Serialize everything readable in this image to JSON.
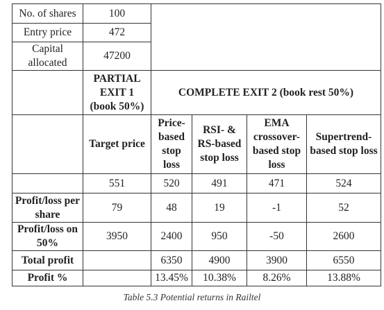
{
  "setup": [
    {
      "label": "No. of shares",
      "value": "100"
    },
    {
      "label": "Entry price",
      "value": "472"
    },
    {
      "label": "Capital allocated",
      "value": "47200"
    }
  ],
  "exit_headers": {
    "partial": "PARTIAL EXIT 1 (book 50%)",
    "complete": "COMPLETE EXIT 2 (book rest 50%)"
  },
  "column_headers": [
    "Target price",
    "Price-based stop loss",
    "RSI- & RS-based stop loss",
    "EMA crossover-based stop loss",
    "Supertrend-based stop loss"
  ],
  "prices": [
    "551",
    "520",
    "491",
    "471",
    "524"
  ],
  "metrics": [
    {
      "label": "Profit/loss per share",
      "values": [
        "79",
        "48",
        "19",
        "-1",
        "52"
      ]
    },
    {
      "label": "Profit/loss on 50%",
      "values": [
        "3950",
        "2400",
        "950",
        "-50",
        "2600"
      ]
    },
    {
      "label": "Total profit",
      "values": [
        "6350",
        "4900",
        "3900",
        "6550"
      ]
    },
    {
      "label": "Profit %",
      "values": [
        "13.45%",
        "10.38%",
        "8.26%",
        "13.88%"
      ]
    }
  ],
  "caption": "Table 5.3 Potential returns in Railtel"
}
